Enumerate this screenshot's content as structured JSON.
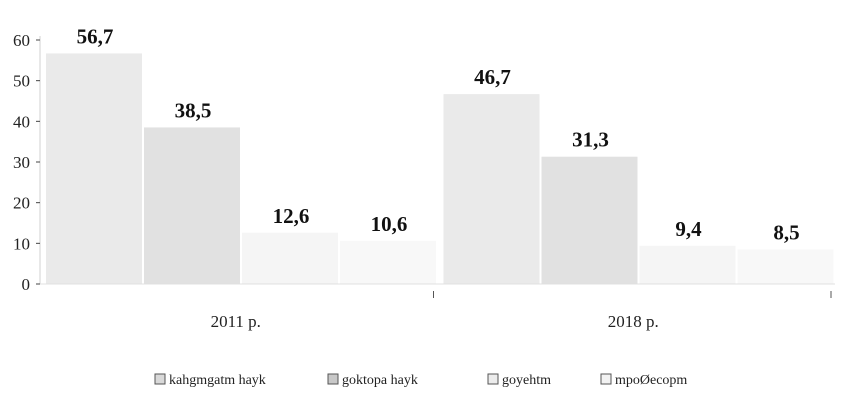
{
  "chart_data": {
    "type": "bar",
    "categories": [
      "2011 р.",
      "2018 р."
    ],
    "series": [
      {
        "name": "kahgmgatm hayk",
        "values": [
          56.7,
          46.7
        ],
        "labels": [
          "56,7",
          "46,7"
        ],
        "color": "#d9d9d9"
      },
      {
        "name": "goktopa hayk",
        "values": [
          38.5,
          31.3
        ],
        "labels": [
          "38,5",
          "31,3"
        ],
        "color": "#c8c8c8"
      },
      {
        "name": "goyehtm",
        "values": [
          12.6,
          9.4
        ],
        "labels": [
          "12,6",
          "9,4"
        ],
        "color": "#ececec"
      },
      {
        "name": "mpoØecopm",
        "values": [
          10.6,
          8.5
        ],
        "labels": [
          "10,6",
          "8,5"
        ],
        "color": "#f2f2f2"
      }
    ],
    "yticks": [
      "0",
      "10",
      "20",
      "30",
      "40",
      "50",
      "60"
    ],
    "ylim": [
      0,
      60
    ],
    "grid": false,
    "legend_position": "bottom"
  }
}
